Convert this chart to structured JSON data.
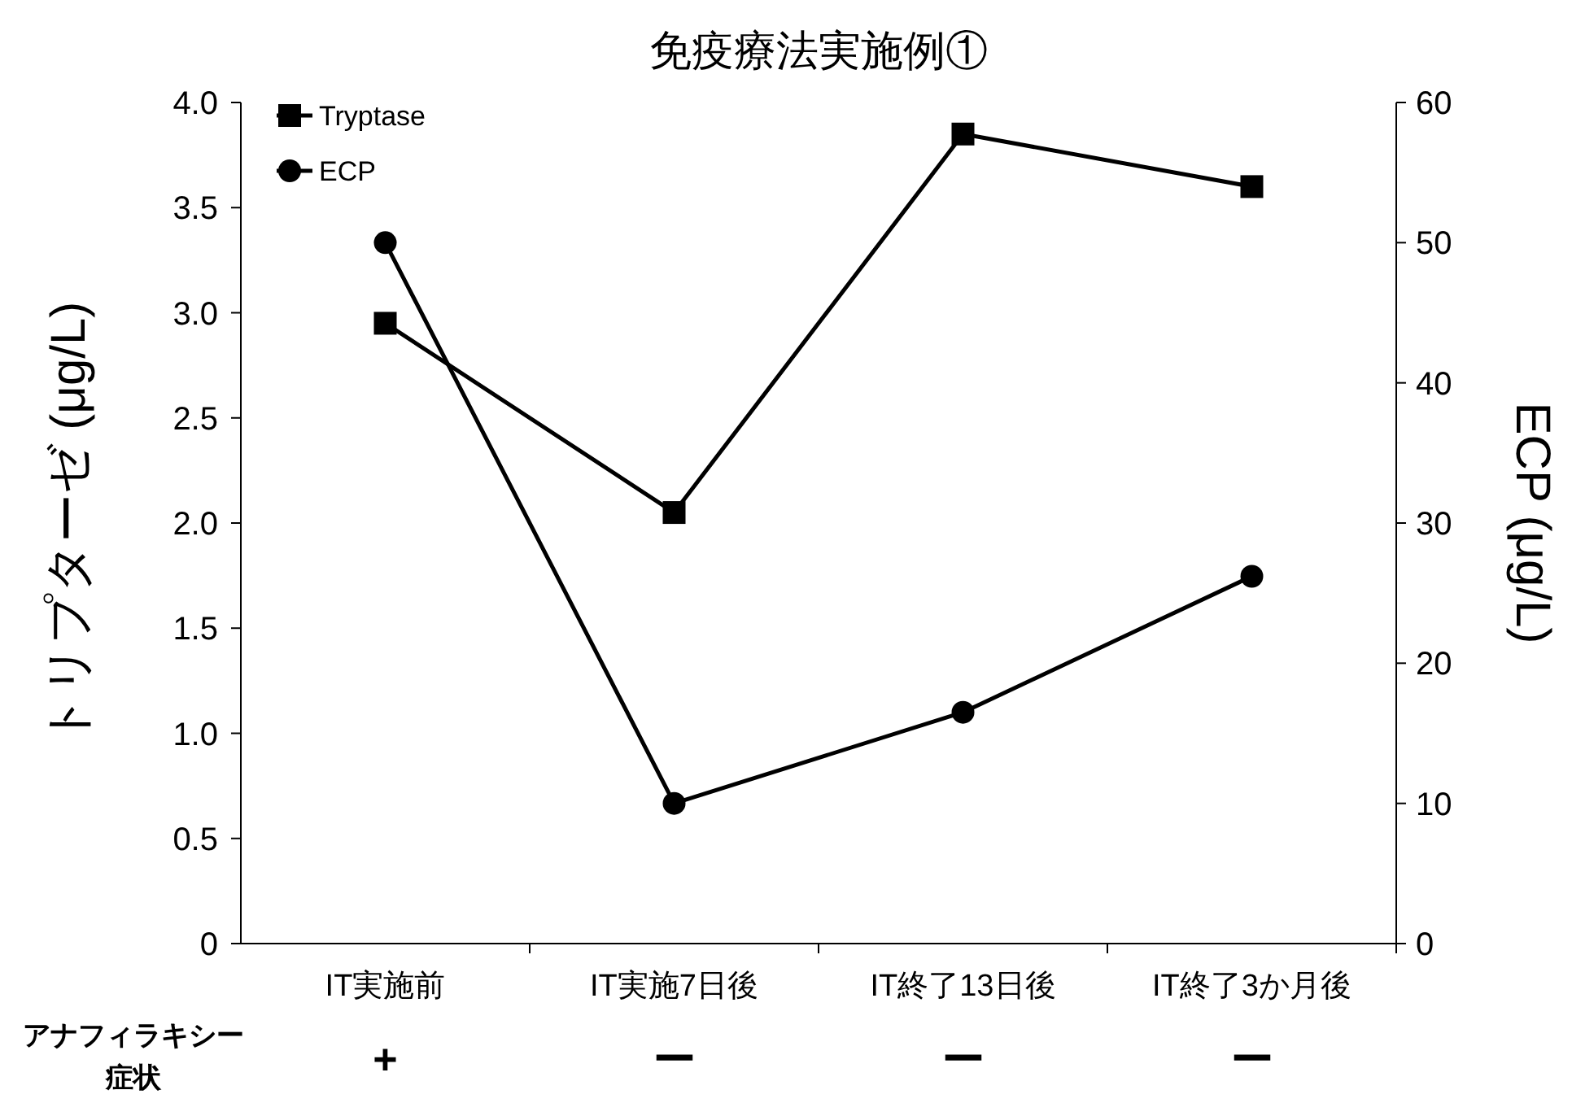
{
  "chart_data": {
    "type": "line",
    "title": "免疫療法実施例①",
    "ylabel": "トリプターゼ (μg/L)",
    "y2label": "ECP (μg/L)",
    "categories": [
      "IT実施前",
      "IT実施7日後",
      "IT終了13日後",
      "IT終了3か月後"
    ],
    "series": [
      {
        "name": "Tryptase",
        "color": "#000000",
        "marker": "square",
        "values": [
          2.95,
          2.05,
          3.85,
          3.6
        ]
      },
      {
        "name": "ECP",
        "color": "#000000",
        "marker": "circle",
        "axis": "y2",
        "values": [
          50,
          10,
          16.5,
          26.2
        ]
      }
    ],
    "ylim": [
      0,
      4
    ],
    "yticks": [
      0,
      0.5,
      {
        "value": 1,
        "label": "1.0"
      },
      1.5,
      {
        "value": 2,
        "label": "2.0"
      },
      2.5,
      {
        "value": 3,
        "label": "3.0"
      },
      3.5,
      {
        "value": 4,
        "label": "4.0"
      }
    ],
    "y2lim": [
      0,
      60
    ],
    "y2ticks": [
      0,
      10,
      20,
      30,
      40,
      50,
      60
    ],
    "legend": "top left",
    "grid": false,
    "line_style": "solid",
    "annotations": [
      "アナフィラキシー",
      "症状",
      "+",
      "ー",
      "ー",
      "ー"
    ]
  }
}
